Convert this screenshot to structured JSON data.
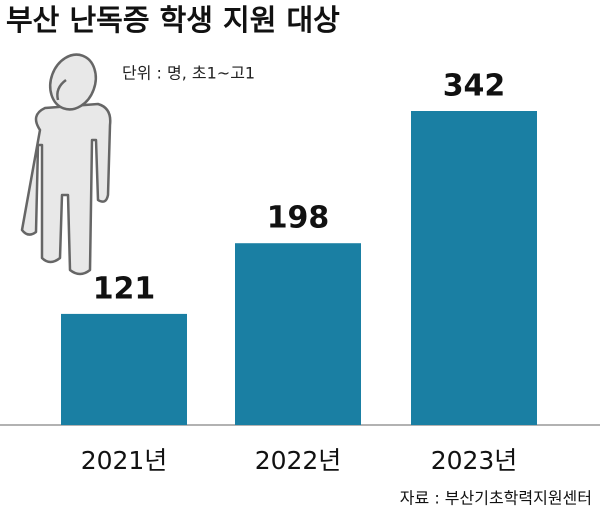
{
  "chart_data": {
    "type": "bar",
    "title": "부산 난독증 학생 지원 대상",
    "subtitle": "단위 : 명, 초1~고1",
    "categories": [
      "2021년",
      "2022년",
      "2023년"
    ],
    "values": [
      121,
      198,
      342
    ],
    "color": "#1a7fa3",
    "source": "자료 : 부산기초학력지원센터"
  }
}
